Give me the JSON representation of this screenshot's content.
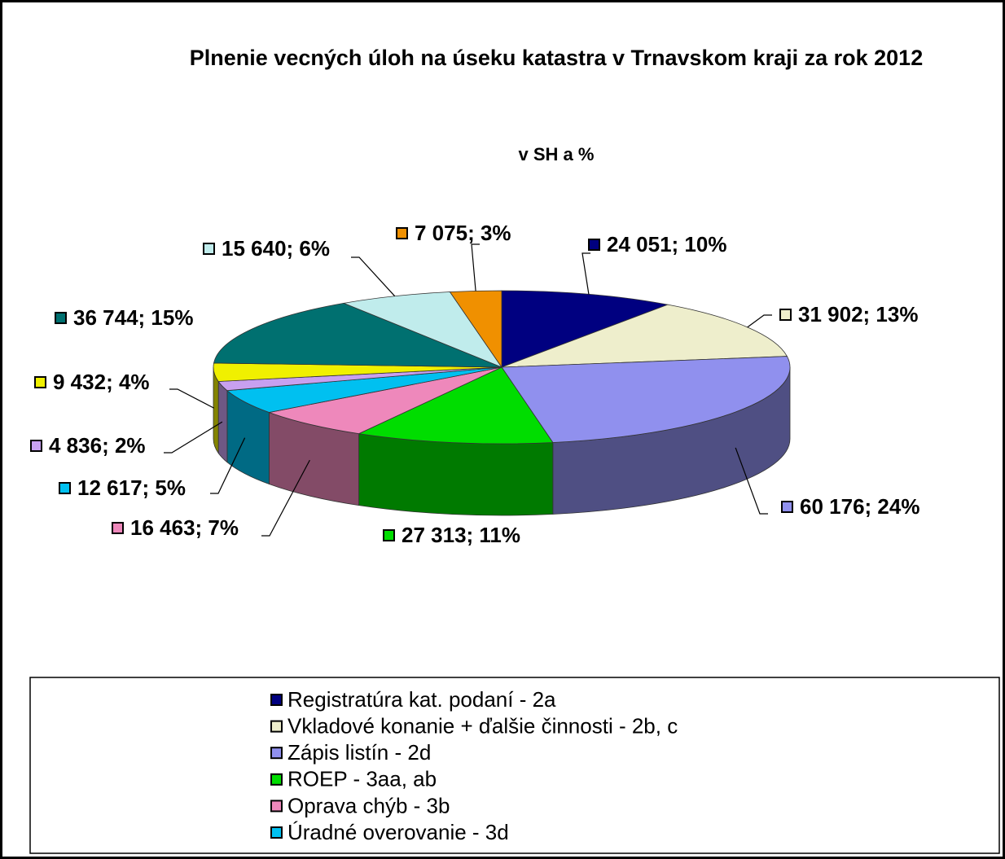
{
  "chart_data": {
    "type": "pie",
    "title": "Plnenie vecných úloh na úseku katastra v Trnavskom kraji za rok 2012",
    "subtitle": "v SH a %",
    "categories": [
      "Registratúra kat. podaní - 2a",
      "Vkladové konanie + ďalšie činnosti - 2b, c",
      "Zápis listín - 2d",
      "ROEP - 3aa, ab",
      "Oprava chýb - 3b",
      "Úradné overovanie - 3d",
      null,
      null,
      null,
      null,
      null
    ],
    "values": [
      24051,
      31902,
      60176,
      27313,
      16463,
      12617,
      4836,
      9432,
      36744,
      15640,
      7075
    ],
    "value_labels": [
      "24 051; 10%",
      "31 902; 13%",
      "60 176; 24%",
      "27 313; 11%",
      "16 463; 7%",
      "12 617; 5%",
      "4 836; 2%",
      "9 432; 4%",
      "36 744; 15%",
      "15 640; 6%",
      "7 075; 3%"
    ],
    "colors": [
      "#000080",
      "#eeeecc",
      "#9090ee",
      "#00dd00",
      "#ee88bb",
      "#00c0f0",
      "#c8a0f0",
      "#f0f000",
      "#007070",
      "#c0ecec",
      "#f09000"
    ]
  }
}
